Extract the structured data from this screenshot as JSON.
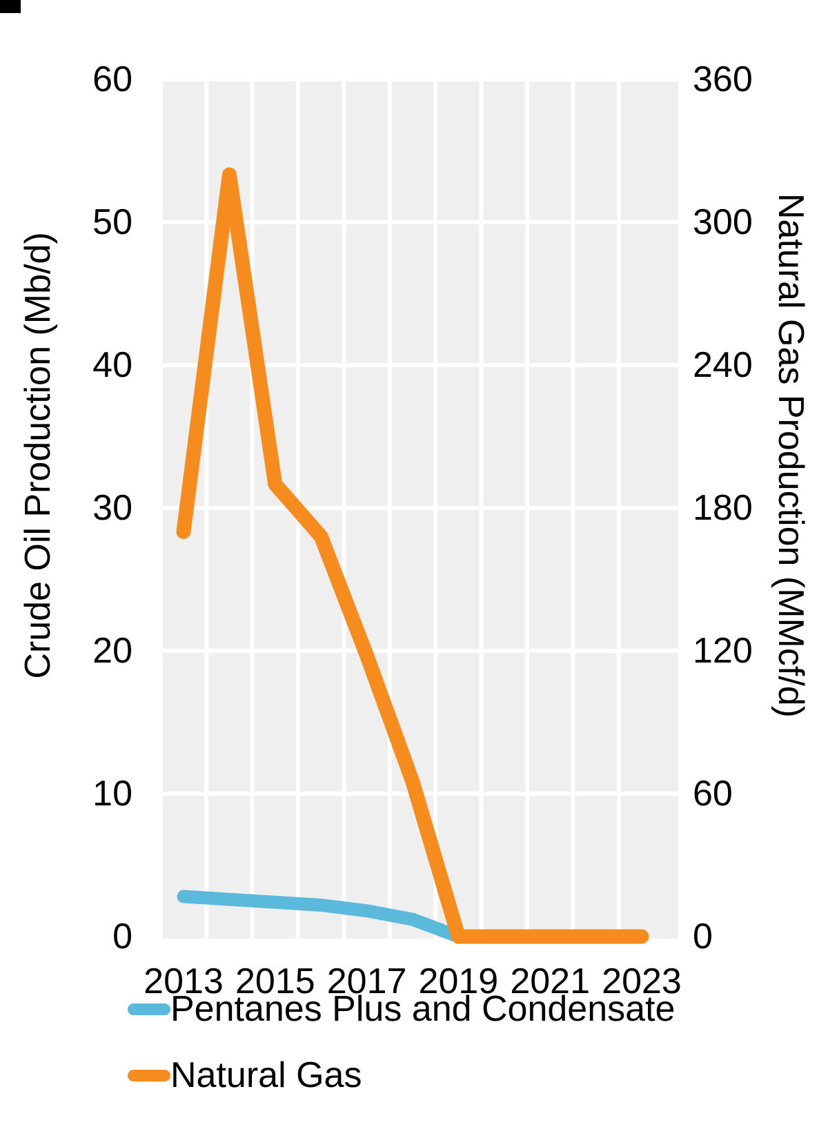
{
  "chart_data": {
    "type": "line",
    "x": [
      2013,
      2014,
      2015,
      2016,
      2017,
      2018,
      2019,
      2020,
      2021,
      2022,
      2023
    ],
    "x_tick_labels": [
      "2013",
      "2015",
      "2017",
      "2019",
      "2021",
      "2023"
    ],
    "x_tick_years": [
      2013,
      2015,
      2017,
      2019,
      2021,
      2023
    ],
    "axes": {
      "left": {
        "label": "Crude Oil Production (Mb/d)",
        "range": [
          0,
          60
        ],
        "ticks": [
          0,
          10,
          20,
          30,
          40,
          50,
          60
        ]
      },
      "right": {
        "label": "Natural Gas Production (MMcf/d)",
        "range": [
          0,
          360
        ],
        "ticks": [
          0,
          60,
          120,
          180,
          240,
          300,
          360
        ]
      }
    },
    "series": [
      {
        "name": "Pentanes Plus and Condensate",
        "axis": "left",
        "color": "#5BB9DC",
        "values": [
          2.8,
          2.6,
          2.4,
          2.2,
          1.8,
          1.2,
          0,
          0,
          0,
          0,
          0
        ]
      },
      {
        "name": "Natural Gas",
        "axis": "right",
        "color": "#F68C1E",
        "values": [
          170,
          320,
          190,
          168,
          118,
          65,
          0,
          0,
          0,
          0,
          0
        ]
      }
    ],
    "grid": true,
    "gridline_color": "#FFFFFF",
    "plot_background": "#EFEFEF",
    "legend_position": "bottom-left"
  }
}
